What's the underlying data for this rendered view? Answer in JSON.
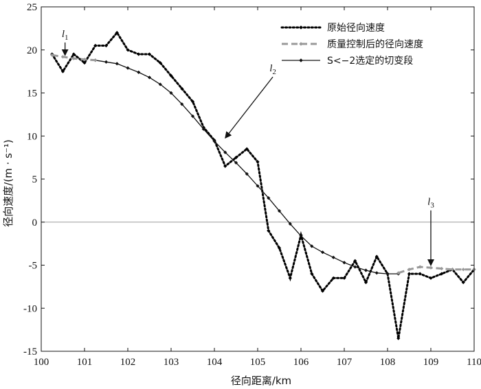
{
  "chart_data": {
    "type": "line",
    "xlabel": "径向距离/km",
    "ylabel": "径向速度/(m · s⁻¹)",
    "xlim": [
      100,
      110
    ],
    "ylim": [
      -15,
      25
    ],
    "x_ticks": [
      100,
      101,
      102,
      103,
      104,
      105,
      106,
      107,
      108,
      109,
      110
    ],
    "y_ticks": [
      -15,
      -10,
      -5,
      0,
      5,
      10,
      15,
      20,
      25
    ],
    "legend_position": "top-right",
    "zero_line": true,
    "series": [
      {
        "name": "原始径向速度",
        "style": "dotted",
        "color": "#000000",
        "markers": true,
        "x": [
          100.25,
          100.5,
          100.75,
          101.0,
          101.25,
          101.5,
          101.75,
          102.0,
          102.25,
          102.5,
          102.75,
          103.0,
          103.25,
          103.5,
          103.75,
          104.0,
          104.25,
          104.5,
          104.75,
          105.0,
          105.25,
          105.5,
          105.75,
          106.0,
          106.25,
          106.5,
          106.75,
          107.0,
          107.25,
          107.5,
          107.75,
          108.0,
          108.25,
          108.5,
          108.75,
          109.0,
          109.25,
          109.5,
          109.75,
          110.0
        ],
        "y": [
          19.5,
          17.5,
          19.5,
          18.5,
          20.5,
          20.5,
          22.0,
          20.0,
          19.5,
          19.5,
          18.5,
          17.0,
          15.5,
          14.0,
          11.0,
          9.5,
          6.5,
          7.5,
          8.5,
          7.0,
          -1.0,
          -3.0,
          -6.5,
          -1.5,
          -6.0,
          -8.0,
          -6.5,
          -6.5,
          -4.5,
          -7.0,
          -4.0,
          -6.0,
          -13.5,
          -6.0,
          -6.0,
          -6.5,
          -6.0,
          -5.5,
          -7.0,
          -5.5
        ]
      },
      {
        "name": "质量控制后的径向速度",
        "style": "dashed",
        "color": "#999999",
        "markers": true,
        "segments": [
          {
            "x": [
              100.25,
              100.5,
              100.75,
              101.0,
              101.25
            ],
            "y": [
              19.4,
              19.2,
              19.0,
              18.9,
              18.8
            ]
          },
          {
            "x": [
              108.25,
              108.5,
              108.75,
              109.0,
              109.25,
              109.5,
              109.75,
              110.0
            ],
            "y": [
              -5.9,
              -5.5,
              -5.2,
              -5.3,
              -5.4,
              -5.5,
              -5.5,
              -5.5
            ]
          }
        ]
      },
      {
        "name": "S<−2选定的切变段",
        "style": "solid",
        "color": "#111111",
        "markers": true,
        "x": [
          101.25,
          101.5,
          101.75,
          102.0,
          102.25,
          102.5,
          102.75,
          103.0,
          103.25,
          103.5,
          103.75,
          104.0,
          104.25,
          104.5,
          104.75,
          105.0,
          105.25,
          105.5,
          105.75,
          106.0,
          106.25,
          106.5,
          106.75,
          107.0,
          107.25,
          107.5,
          107.75,
          108.0,
          108.25
        ],
        "y": [
          18.8,
          18.6,
          18.4,
          17.9,
          17.4,
          16.8,
          16.0,
          15.0,
          13.7,
          12.3,
          10.8,
          9.4,
          8.1,
          6.9,
          5.6,
          4.2,
          2.8,
          1.3,
          -0.2,
          -1.6,
          -2.8,
          -3.5,
          -4.1,
          -4.7,
          -5.2,
          -5.6,
          -5.9,
          -6.0,
          -6.0
        ]
      }
    ],
    "annotations": [
      {
        "label": "l",
        "sub": "1",
        "x": 100.55,
        "y": 21.5,
        "arrow_to": [
          100.55,
          19.2
        ]
      },
      {
        "label": "l",
        "sub": "2",
        "x": 105.35,
        "y": 17.5,
        "arrow_to": [
          104.25,
          9.6
        ]
      },
      {
        "label": "l",
        "sub": "3",
        "x": 109.0,
        "y": 2.0,
        "arrow_to": [
          109.0,
          -5.2
        ]
      }
    ]
  }
}
